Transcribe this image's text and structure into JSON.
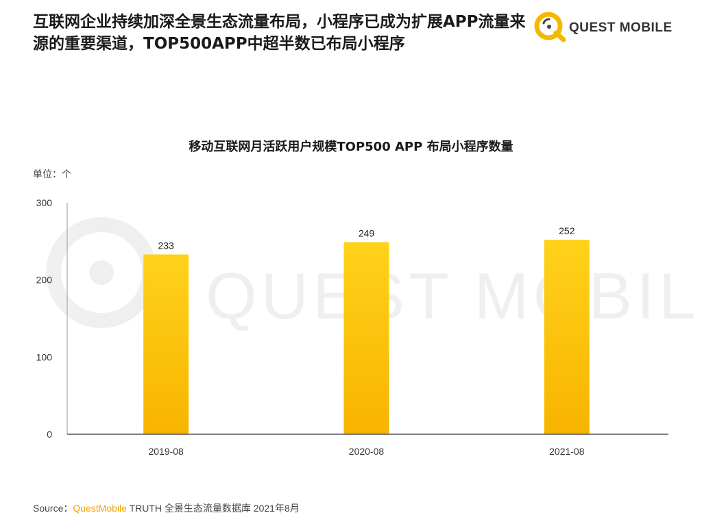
{
  "headline": "互联网企业持续加深全景生态流量布局，小程序已成为扩展APP流量来源的重要渠道，TOP500APP中超半数已布局小程序",
  "logo": {
    "text": "QUEST MOBILE"
  },
  "watermark": {
    "text": "QUEST MOBILE"
  },
  "unit_label": "单位：个",
  "source": {
    "prefix": "Source：",
    "brand": "QuestMobile",
    "rest": " TRUTH 全景生态流量数据库 2021年8月"
  },
  "colors": {
    "bar_top": "#ffd21a",
    "bar_bottom": "#f8b400",
    "brand": "#f5a300"
  },
  "chart_data": {
    "type": "bar",
    "title": "移动互联网月活跃用户规模TOP500 APP 布局小程序数量",
    "ylabel": "单位：个",
    "xlabel": "",
    "categories": [
      "2019-08",
      "2020-08",
      "2021-08"
    ],
    "values": [
      233,
      249,
      252
    ],
    "ylim": [
      0,
      300
    ],
    "yticks": [
      0,
      100,
      200,
      300
    ],
    "grid": false,
    "data_labels": true
  }
}
